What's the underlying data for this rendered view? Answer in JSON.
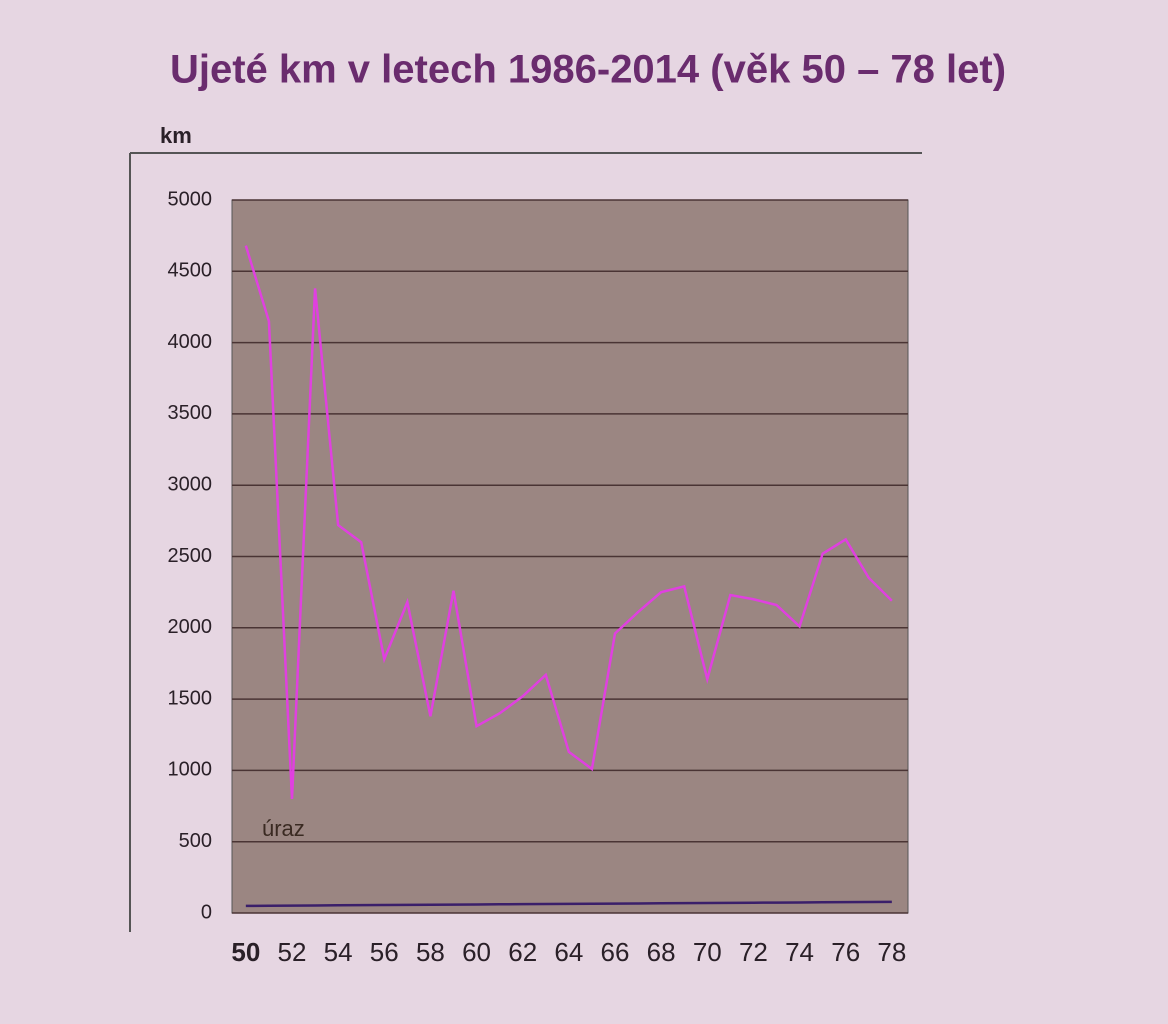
{
  "chart_data": {
    "type": "line",
    "title": "Ujeté km v letech 1986-2014 (věk 50 – 78 let)",
    "y_label": "km",
    "x": [
      50,
      51,
      52,
      53,
      54,
      55,
      56,
      57,
      58,
      59,
      60,
      61,
      62,
      63,
      64,
      65,
      66,
      67,
      68,
      69,
      70,
      71,
      72,
      73,
      74,
      75,
      76,
      77,
      78
    ],
    "series": [
      {
        "color": "#e040e0",
        "values": [
          4680,
          4150,
          800,
          4380,
          2720,
          2600,
          1780,
          2180,
          1380,
          2260,
          1310,
          1400,
          1520,
          1670,
          1130,
          1010,
          1960,
          2110,
          2250,
          2290,
          1640,
          2230,
          2200,
          2160,
          2010,
          2520,
          2620,
          2350,
          2190
        ]
      },
      {
        "color": "#3a1f6a",
        "values": [
          50,
          51,
          52,
          53,
          54,
          55,
          56,
          57,
          58,
          59,
          60,
          61,
          62,
          63,
          64,
          65,
          66,
          67,
          68,
          69,
          70,
          71,
          72,
          73,
          74,
          75,
          76,
          77,
          78
        ]
      }
    ],
    "annotations": [
      {
        "text": "úraz"
      }
    ],
    "xlim": [
      49.4,
      78.7
    ],
    "xticks": [
      50,
      52,
      54,
      56,
      58,
      60,
      62,
      64,
      66,
      68,
      70,
      72,
      74,
      76,
      78
    ],
    "ylim": [
      0,
      5000
    ],
    "yticks": [
      0,
      500,
      1000,
      1500,
      2000,
      2500,
      3000,
      3500,
      4000,
      4500,
      5000
    ],
    "grid": true
  }
}
